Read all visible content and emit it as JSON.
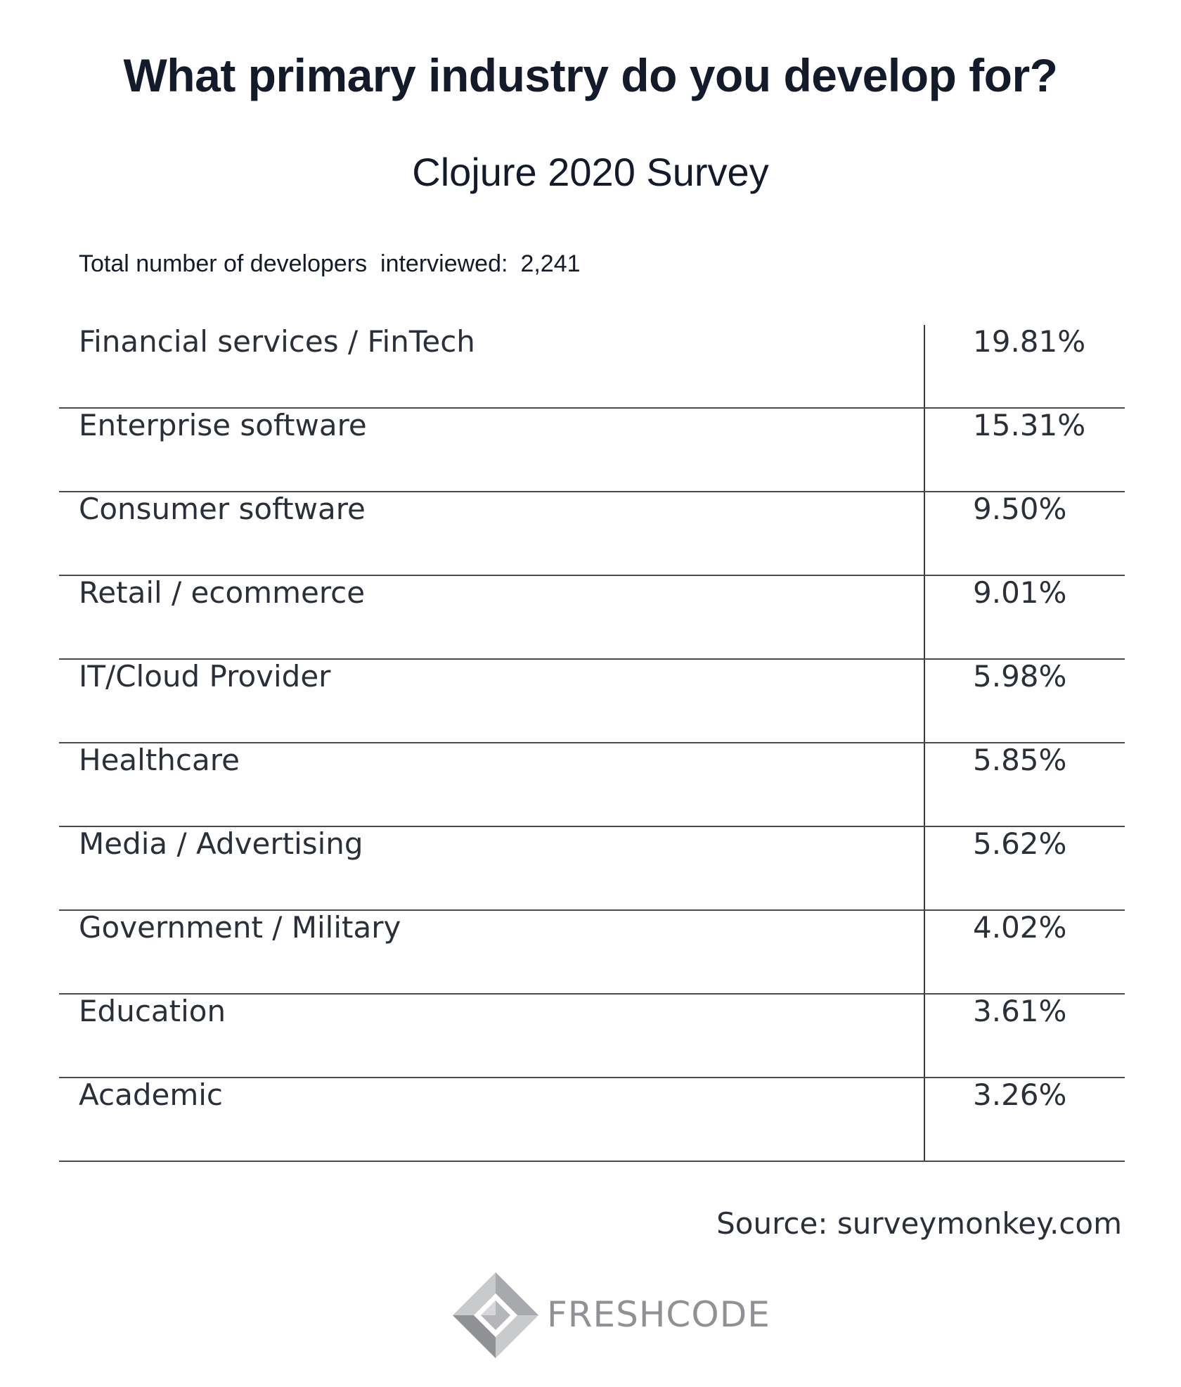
{
  "chart_data": {
    "type": "table",
    "title": "What primary industry do you develop for?",
    "subtitle": "Clojure 2020 Survey",
    "total": {
      "label": "Total number of developers  interviewed:",
      "value": "2,241"
    },
    "rows": [
      {
        "category": "Financial services / FinTech",
        "value": "19.81%"
      },
      {
        "category": "Enterprise software",
        "value": "15.31%"
      },
      {
        "category": "Consumer software",
        "value": "9.50%"
      },
      {
        "category": "Retail / ecommerce",
        "value": "9.01%"
      },
      {
        "category": "IT/Cloud Provider",
        "value": "5.98%"
      },
      {
        "category": "Healthcare",
        "value": "5.85%"
      },
      {
        "category": "Media / Advertising",
        "value": "5.62%"
      },
      {
        "category": "Government / Military",
        "value": "4.02%"
      },
      {
        "category": "Education",
        "value": "3.61%"
      },
      {
        "category": "Academic",
        "value": "3.26%"
      }
    ],
    "source": "Source: surveymonkey.com"
  },
  "logo": {
    "text": "FRESHCODE",
    "icon": "freshcode-diamond-logo-icon"
  },
  "colors": {
    "text": "#131a2a",
    "rule": "#4a4a4a",
    "logo_gray": "#8f9194"
  }
}
